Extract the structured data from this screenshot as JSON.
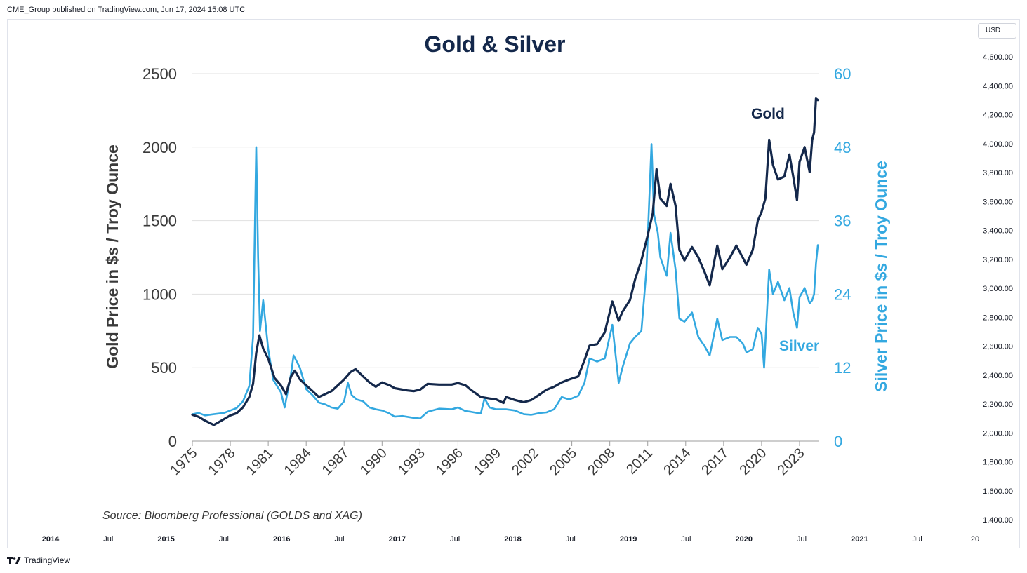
{
  "header": {
    "published": "CME_Group published on TradingView.com, Jun 17, 2024 15:08 UTC"
  },
  "price_scale": {
    "currency": "USD",
    "labels": [
      "4,600.00",
      "4,400.00",
      "4,200.00",
      "4,000.00",
      "3,800.00",
      "3,600.00",
      "3,400.00",
      "3,200.00",
      "3,000.00",
      "2,800.00",
      "2,600.00",
      "2,400.00",
      "2,200.00",
      "2,000.00",
      "1,800.00",
      "1,600.00",
      "1,400.00"
    ]
  },
  "time_scale": {
    "labels": [
      "2014",
      "Jul",
      "2015",
      "Jul",
      "2016",
      "Jul",
      "2017",
      "Jul",
      "2018",
      "Jul",
      "2019",
      "Jul",
      "2020",
      "Jul",
      "2021",
      "Jul",
      "20"
    ]
  },
  "footer": {
    "brand": "TradingView",
    "logo_icon": "tradingview-logo-icon"
  },
  "colors": {
    "gold": "#14284b",
    "silver": "#33a8e0",
    "grid": "#e1e1e1",
    "title": "#14284b"
  },
  "chart_data": {
    "type": "line",
    "title": "Gold & Silver",
    "source": "Source: Bloomberg Professional (GOLDS and XAG)",
    "ylabel": "Gold Price in $s / Troy Ounce",
    "y2label": "Silver Price in $s / Troy Ounce",
    "ylim": [
      0,
      2500
    ],
    "y2lim": [
      0,
      60
    ],
    "yticks": [
      "0",
      "500",
      "1000",
      "1500",
      "2000",
      "2500"
    ],
    "y2ticks": [
      "0",
      "12",
      "24",
      "36",
      "48",
      "60"
    ],
    "xlim": [
      1975,
      2024.5
    ],
    "xticks": [
      "1975",
      "1978",
      "1981",
      "1984",
      "1987",
      "1990",
      "1993",
      "1996",
      "1999",
      "2002",
      "2005",
      "2008",
      "2011",
      "2014",
      "2017",
      "2020",
      "2023"
    ],
    "grid": true,
    "series": [
      {
        "name": "Gold",
        "axis": "left",
        "label": "Gold",
        "points": [
          [
            1975.0,
            180
          ],
          [
            1975.5,
            165
          ],
          [
            1976.0,
            140
          ],
          [
            1976.7,
            110
          ],
          [
            1977.5,
            150
          ],
          [
            1978.0,
            175
          ],
          [
            1978.5,
            190
          ],
          [
            1979.0,
            230
          ],
          [
            1979.5,
            300
          ],
          [
            1979.8,
            390
          ],
          [
            1980.05,
            600
          ],
          [
            1980.3,
            720
          ],
          [
            1980.6,
            630
          ],
          [
            1981.0,
            560
          ],
          [
            1981.5,
            430
          ],
          [
            1982.0,
            380
          ],
          [
            1982.4,
            320
          ],
          [
            1982.8,
            440
          ],
          [
            1983.1,
            480
          ],
          [
            1983.5,
            420
          ],
          [
            1984.0,
            380
          ],
          [
            1984.5,
            340
          ],
          [
            1985.0,
            300
          ],
          [
            1985.5,
            320
          ],
          [
            1986.0,
            340
          ],
          [
            1986.5,
            380
          ],
          [
            1987.0,
            420
          ],
          [
            1987.5,
            470
          ],
          [
            1987.9,
            490
          ],
          [
            1988.5,
            440
          ],
          [
            1989.0,
            400
          ],
          [
            1989.5,
            370
          ],
          [
            1990.0,
            400
          ],
          [
            1990.6,
            380
          ],
          [
            1991.0,
            360
          ],
          [
            1992.0,
            345
          ],
          [
            1992.5,
            340
          ],
          [
            1993.0,
            350
          ],
          [
            1993.6,
            390
          ],
          [
            1994.5,
            385
          ],
          [
            1995.5,
            385
          ],
          [
            1996.0,
            395
          ],
          [
            1996.6,
            380
          ],
          [
            1997.0,
            350
          ],
          [
            1997.8,
            300
          ],
          [
            1998.5,
            290
          ],
          [
            1999.0,
            285
          ],
          [
            1999.6,
            260
          ],
          [
            1999.8,
            300
          ],
          [
            2000.5,
            280
          ],
          [
            2001.2,
            265
          ],
          [
            2001.8,
            280
          ],
          [
            2002.5,
            320
          ],
          [
            2003.0,
            350
          ],
          [
            2003.6,
            370
          ],
          [
            2004.2,
            400
          ],
          [
            2004.8,
            420
          ],
          [
            2005.5,
            440
          ],
          [
            2006.0,
            550
          ],
          [
            2006.4,
            650
          ],
          [
            2007.0,
            660
          ],
          [
            2007.6,
            740
          ],
          [
            2008.2,
            950
          ],
          [
            2008.7,
            820
          ],
          [
            2009.0,
            880
          ],
          [
            2009.6,
            960
          ],
          [
            2010.0,
            1100
          ],
          [
            2010.5,
            1230
          ],
          [
            2011.0,
            1400
          ],
          [
            2011.4,
            1550
          ],
          [
            2011.7,
            1850
          ],
          [
            2012.0,
            1650
          ],
          [
            2012.5,
            1600
          ],
          [
            2012.8,
            1750
          ],
          [
            2013.2,
            1600
          ],
          [
            2013.5,
            1300
          ],
          [
            2013.9,
            1230
          ],
          [
            2014.5,
            1320
          ],
          [
            2015.0,
            1250
          ],
          [
            2015.5,
            1150
          ],
          [
            2015.9,
            1060
          ],
          [
            2016.5,
            1330
          ],
          [
            2016.9,
            1170
          ],
          [
            2017.5,
            1250
          ],
          [
            2018.0,
            1330
          ],
          [
            2018.5,
            1250
          ],
          [
            2018.8,
            1200
          ],
          [
            2019.3,
            1300
          ],
          [
            2019.7,
            1500
          ],
          [
            2020.0,
            1560
          ],
          [
            2020.3,
            1650
          ],
          [
            2020.6,
            2050
          ],
          [
            2020.9,
            1880
          ],
          [
            2021.3,
            1780
          ],
          [
            2021.8,
            1800
          ],
          [
            2022.2,
            1950
          ],
          [
            2022.5,
            1800
          ],
          [
            2022.8,
            1640
          ],
          [
            2023.0,
            1900
          ],
          [
            2023.4,
            2000
          ],
          [
            2023.8,
            1830
          ],
          [
            2024.0,
            2050
          ],
          [
            2024.15,
            2100
          ],
          [
            2024.3,
            2330
          ],
          [
            2024.45,
            2320
          ]
        ]
      },
      {
        "name": "Silver",
        "axis": "right",
        "label": "Silver",
        "points": [
          [
            1975.0,
            4.4
          ],
          [
            1975.5,
            4.6
          ],
          [
            1976.0,
            4.2
          ],
          [
            1976.7,
            4.4
          ],
          [
            1977.5,
            4.6
          ],
          [
            1978.0,
            5.0
          ],
          [
            1978.5,
            5.4
          ],
          [
            1979.0,
            6.5
          ],
          [
            1979.5,
            9.0
          ],
          [
            1979.8,
            17.0
          ],
          [
            1980.05,
            48.0
          ],
          [
            1980.2,
            30.0
          ],
          [
            1980.35,
            18.0
          ],
          [
            1980.6,
            23.0
          ],
          [
            1981.0,
            15.0
          ],
          [
            1981.4,
            10.0
          ],
          [
            1981.7,
            9.0
          ],
          [
            1982.0,
            8.0
          ],
          [
            1982.3,
            5.5
          ],
          [
            1982.8,
            11.0
          ],
          [
            1983.0,
            14.0
          ],
          [
            1983.5,
            12.0
          ],
          [
            1984.0,
            8.5
          ],
          [
            1984.5,
            7.5
          ],
          [
            1985.0,
            6.3
          ],
          [
            1985.5,
            6.0
          ],
          [
            1986.0,
            5.5
          ],
          [
            1986.5,
            5.3
          ],
          [
            1987.0,
            6.5
          ],
          [
            1987.3,
            9.5
          ],
          [
            1987.6,
            7.5
          ],
          [
            1988.0,
            6.8
          ],
          [
            1988.5,
            6.5
          ],
          [
            1989.0,
            5.5
          ],
          [
            1989.5,
            5.2
          ],
          [
            1990.0,
            5.0
          ],
          [
            1990.5,
            4.6
          ],
          [
            1991.0,
            4.0
          ],
          [
            1991.6,
            4.1
          ],
          [
            1992.5,
            3.8
          ],
          [
            1993.0,
            3.7
          ],
          [
            1993.6,
            4.8
          ],
          [
            1994.5,
            5.3
          ],
          [
            1995.5,
            5.2
          ],
          [
            1996.0,
            5.5
          ],
          [
            1996.6,
            4.9
          ],
          [
            1997.0,
            4.8
          ],
          [
            1997.8,
            4.5
          ],
          [
            1998.1,
            7.0
          ],
          [
            1998.5,
            5.5
          ],
          [
            1999.0,
            5.2
          ],
          [
            1999.8,
            5.2
          ],
          [
            2000.5,
            5.0
          ],
          [
            2001.2,
            4.4
          ],
          [
            2001.8,
            4.3
          ],
          [
            2002.5,
            4.6
          ],
          [
            2003.0,
            4.7
          ],
          [
            2003.6,
            5.2
          ],
          [
            2004.2,
            7.2
          ],
          [
            2004.8,
            6.8
          ],
          [
            2005.5,
            7.4
          ],
          [
            2006.0,
            9.5
          ],
          [
            2006.4,
            13.5
          ],
          [
            2007.0,
            13.0
          ],
          [
            2007.6,
            13.5
          ],
          [
            2008.2,
            19.0
          ],
          [
            2008.7,
            9.5
          ],
          [
            2009.0,
            12.0
          ],
          [
            2009.6,
            16.0
          ],
          [
            2010.0,
            17.0
          ],
          [
            2010.5,
            18.0
          ],
          [
            2010.9,
            28.0
          ],
          [
            2011.3,
            48.5
          ],
          [
            2011.5,
            37.0
          ],
          [
            2011.8,
            34.0
          ],
          [
            2012.0,
            30.0
          ],
          [
            2012.5,
            27.0
          ],
          [
            2012.8,
            34.0
          ],
          [
            2013.2,
            28.0
          ],
          [
            2013.5,
            20.0
          ],
          [
            2013.9,
            19.5
          ],
          [
            2014.5,
            21.0
          ],
          [
            2015.0,
            17.0
          ],
          [
            2015.5,
            15.5
          ],
          [
            2015.9,
            14.0
          ],
          [
            2016.5,
            20.0
          ],
          [
            2016.9,
            16.5
          ],
          [
            2017.5,
            17.0
          ],
          [
            2018.0,
            17.0
          ],
          [
            2018.5,
            16.0
          ],
          [
            2018.8,
            14.5
          ],
          [
            2019.3,
            15.0
          ],
          [
            2019.7,
            18.5
          ],
          [
            2020.0,
            17.5
          ],
          [
            2020.2,
            12.0
          ],
          [
            2020.6,
            28.0
          ],
          [
            2020.9,
            24.0
          ],
          [
            2021.3,
            26.0
          ],
          [
            2021.8,
            23.0
          ],
          [
            2022.2,
            25.0
          ],
          [
            2022.5,
            21.0
          ],
          [
            2022.8,
            18.5
          ],
          [
            2023.0,
            23.5
          ],
          [
            2023.4,
            25.0
          ],
          [
            2023.8,
            22.5
          ],
          [
            2024.0,
            23.0
          ],
          [
            2024.15,
            24.0
          ],
          [
            2024.3,
            29.0
          ],
          [
            2024.45,
            32.0
          ]
        ]
      }
    ]
  }
}
